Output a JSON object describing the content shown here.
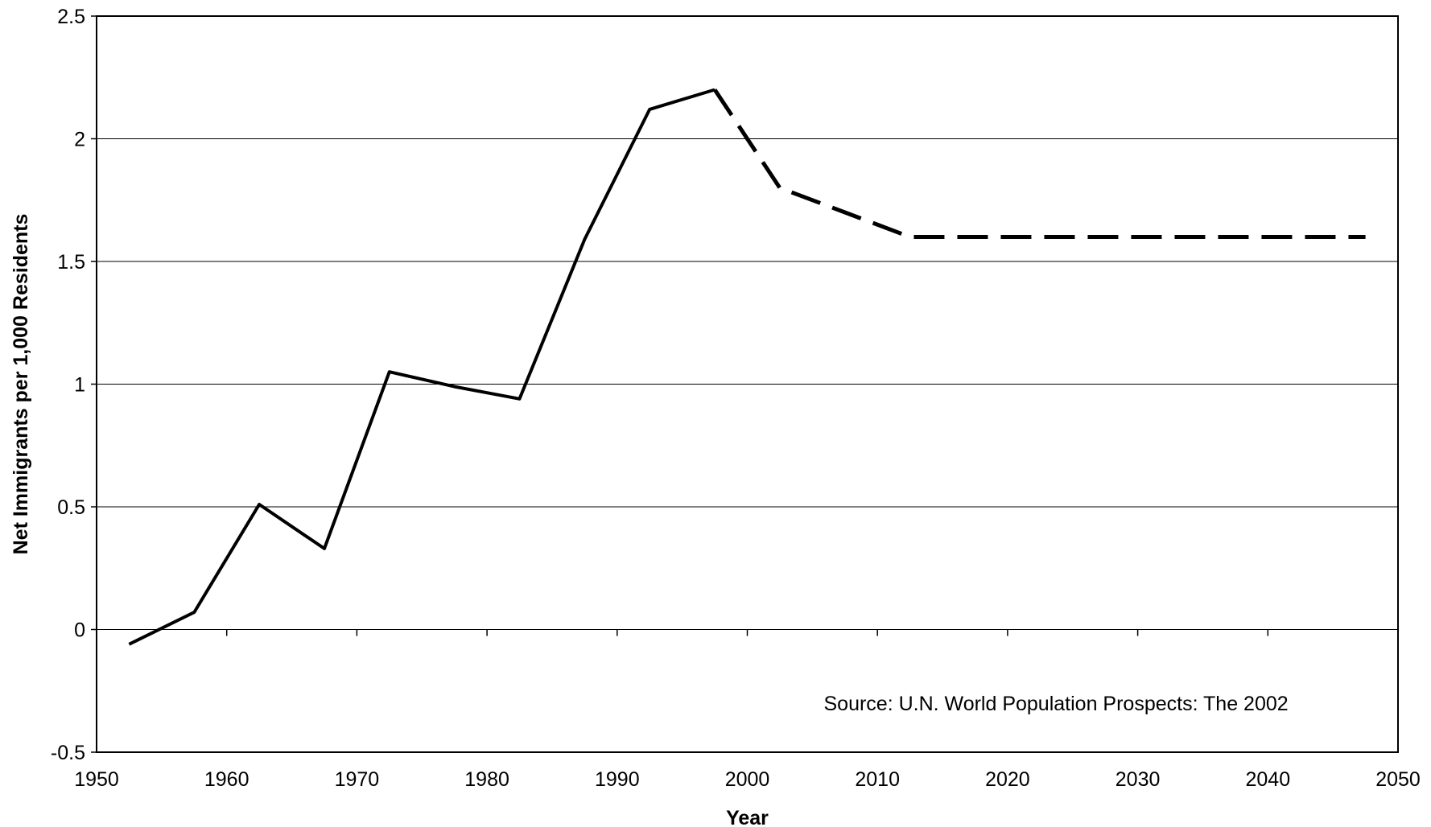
{
  "chart_data": {
    "type": "line",
    "title": "",
    "xlabel": "Year",
    "ylabel": "Net Immigrants per 1,000  Residents",
    "xlim": [
      1950,
      2050
    ],
    "ylim": [
      -0.5,
      2.5
    ],
    "x_ticks": [
      "1950",
      "1960",
      "1970",
      "1980",
      "1990",
      "2000",
      "2010",
      "2020",
      "2030",
      "2040",
      "2050"
    ],
    "y_ticks": [
      "-0.5",
      "0",
      "0.5",
      "1",
      "1.5",
      "2",
      "2.5"
    ],
    "grid": "horizontal",
    "legend": "none",
    "annotation": "Source: U.N. World Population Prospects: The 2002",
    "series": [
      {
        "style": "solid",
        "color": "#000000",
        "x": [
          1952.5,
          1957.5,
          1962.5,
          1967.5,
          1972.5,
          1977.5,
          1982.5,
          1987.5,
          1992.5,
          1997.5
        ],
        "y": [
          -0.06,
          0.07,
          0.51,
          0.33,
          1.05,
          0.99,
          0.94,
          1.59,
          2.12,
          2.2
        ]
      },
      {
        "style": "dashed",
        "color": "#000000",
        "x": [
          1997.5,
          2002.5,
          2007.5,
          2012.5,
          2017.5,
          2022.5,
          2027.5,
          2032.5,
          2037.5,
          2042.5,
          2047.5
        ],
        "y": [
          2.2,
          1.8,
          1.7,
          1.6,
          1.6,
          1.6,
          1.6,
          1.6,
          1.6,
          1.6,
          1.6
        ]
      }
    ]
  }
}
